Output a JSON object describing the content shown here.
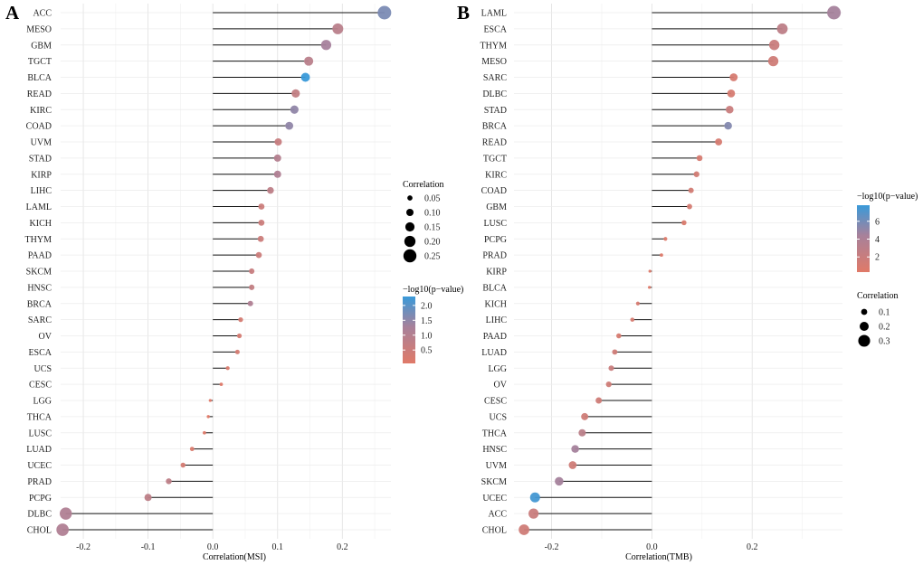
{
  "chart_data": [
    {
      "type": "lollipop",
      "panel_label": "A",
      "xlabel": "Correlation(MSI)",
      "xlim": [
        -0.235,
        0.275
      ],
      "xticks": [
        -0.2,
        -0.1,
        0.0,
        0.1,
        0.2
      ],
      "xtick_labels": [
        "-0.2",
        "-0.1",
        "0.0",
        "0.1",
        "0.2"
      ],
      "grid": true,
      "categories": [
        "ACC",
        "MESO",
        "GBM",
        "TGCT",
        "BLCA",
        "READ",
        "KIRC",
        "COAD",
        "UVM",
        "STAD",
        "KIRP",
        "LIHC",
        "LAML",
        "KICH",
        "THYM",
        "PAAD",
        "SKCM",
        "HNSC",
        "BRCA",
        "SARC",
        "OV",
        "ESCA",
        "UCS",
        "CESC",
        "LGG",
        "THCA",
        "LUSC",
        "LUAD",
        "UCEC",
        "PRAD",
        "PCPG",
        "DLBC",
        "CHOL"
      ],
      "values": [
        0.265,
        0.193,
        0.175,
        0.148,
        0.143,
        0.128,
        0.126,
        0.118,
        0.101,
        0.1,
        0.1,
        0.089,
        0.075,
        0.075,
        0.074,
        0.071,
        0.06,
        0.06,
        0.058,
        0.043,
        0.041,
        0.038,
        0.023,
        0.013,
        -0.004,
        -0.007,
        -0.013,
        -0.032,
        -0.046,
        -0.068,
        -0.1,
        -0.227,
        -0.232
      ],
      "neg_log10_p": [
        1.7,
        0.9,
        1.3,
        0.9,
        2.3,
        0.7,
        1.5,
        1.5,
        0.6,
        1.0,
        1.1,
        0.8,
        0.5,
        0.5,
        0.5,
        0.5,
        0.6,
        0.7,
        1.1,
        0.3,
        0.3,
        0.3,
        0.2,
        0.1,
        0.05,
        0.05,
        0.1,
        0.2,
        0.3,
        0.8,
        0.8,
        1.1,
        1.1
      ],
      "legend": {
        "position": "right",
        "size_title": "Correlation",
        "size_breaks": [
          0.05,
          0.1,
          0.15,
          0.2,
          0.25
        ],
        "size_labels": [
          "0.05",
          "0.10",
          "0.15",
          "0.20",
          "0.25"
        ],
        "color_title": "−log10(p−value)",
        "color_range": [
          0.05,
          2.3
        ],
        "color_breaks": [
          0.5,
          1.0,
          1.5,
          2.0
        ],
        "color_labels": [
          "0.5",
          "1.0",
          "1.5",
          "2.0"
        ]
      }
    },
    {
      "type": "lollipop",
      "panel_label": "B",
      "xlabel": "Correlation(TMB)",
      "xlim": [
        -0.275,
        0.38
      ],
      "xticks": [
        -0.2,
        0.0,
        0.2
      ],
      "xtick_labels": [
        "-0.2",
        "0.0",
        "0.2"
      ],
      "grid": true,
      "categories": [
        "LAML",
        "ESCA",
        "THYM",
        "MESO",
        "SARC",
        "DLBC",
        "STAD",
        "BRCA",
        "READ",
        "TGCT",
        "KIRC",
        "COAD",
        "GBM",
        "LUSC",
        "PCPG",
        "PRAD",
        "KIRP",
        "BLCA",
        "KICH",
        "LIHC",
        "PAAD",
        "LUAD",
        "LGG",
        "OV",
        "CESC",
        "UCS",
        "THCA",
        "HNSC",
        "UVM",
        "SKCM",
        "UCEC",
        "ACC",
        "CHOL"
      ],
      "values": [
        0.363,
        0.26,
        0.244,
        0.242,
        0.163,
        0.158,
        0.155,
        0.152,
        0.133,
        0.095,
        0.089,
        0.078,
        0.075,
        0.064,
        0.027,
        0.019,
        -0.004,
        -0.005,
        -0.028,
        -0.039,
        -0.066,
        -0.074,
        -0.081,
        -0.086,
        -0.106,
        -0.134,
        -0.139,
        -0.153,
        -0.158,
        -0.185,
        -0.233,
        -0.236,
        -0.255
      ],
      "neg_log10_p": [
        4.5,
        2.8,
        2.0,
        1.5,
        1.0,
        1.0,
        2.0,
        5.5,
        1.0,
        1.0,
        1.3,
        1.3,
        1.2,
        0.8,
        0.5,
        0.5,
        0.5,
        0.5,
        1.0,
        1.0,
        1.0,
        1.5,
        2.0,
        1.5,
        1.5,
        1.5,
        3.0,
        4.5,
        1.5,
        4.5,
        7.5,
        2.0,
        1.5
      ],
      "legend": {
        "position": "right",
        "size_title": "Correlation",
        "size_breaks": [
          0.1,
          0.2,
          0.3
        ],
        "size_labels": [
          "0.1",
          "0.2",
          "0.3"
        ],
        "color_title": "−log10(p−value)",
        "color_range": [
          0.3,
          7.8
        ],
        "color_breaks": [
          2,
          4,
          6
        ],
        "color_labels": [
          "2",
          "4",
          "6"
        ]
      }
    }
  ]
}
